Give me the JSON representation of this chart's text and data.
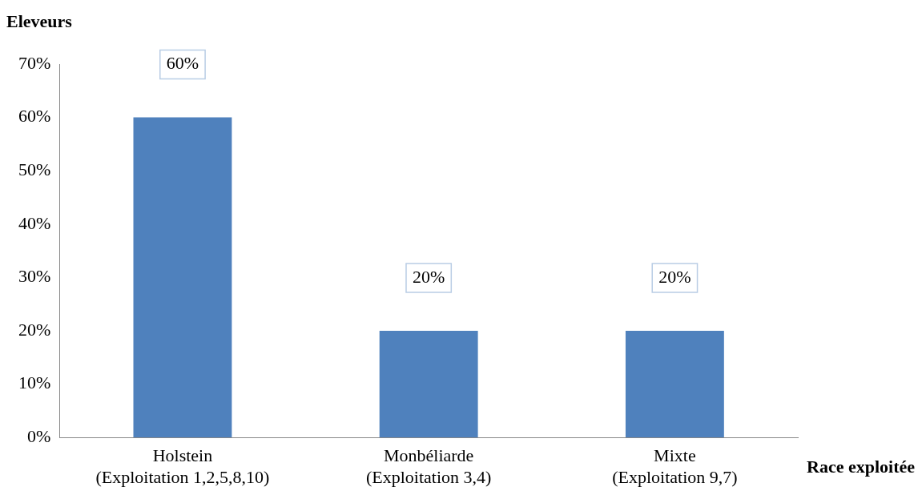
{
  "chart_data": {
    "type": "bar",
    "ylabel": "Eleveurs",
    "xlabel": "Race exploitée",
    "categories": [
      "Holstein\n(Exploitation 1,2,5,8,10)",
      "Monbéliarde\n(Exploitation 3,4)",
      "Mixte\n(Exploitation 9,7)"
    ],
    "values": [
      60,
      20,
      20
    ],
    "color": "#4f81bd",
    "ylim": [
      0,
      70
    ],
    "yticks": [
      {
        "value": 0,
        "label": "0%"
      },
      {
        "value": 10,
        "label": "10%"
      },
      {
        "value": 20,
        "label": "20%"
      },
      {
        "value": 30,
        "label": "30%"
      },
      {
        "value": 40,
        "label": "40%"
      },
      {
        "value": 50,
        "label": "50%"
      },
      {
        "value": 60,
        "label": "60%"
      },
      {
        "value": 70,
        "label": "70%"
      }
    ],
    "value_labels": [
      "60%",
      "20%",
      "20%"
    ],
    "grid": false,
    "legend": false
  }
}
